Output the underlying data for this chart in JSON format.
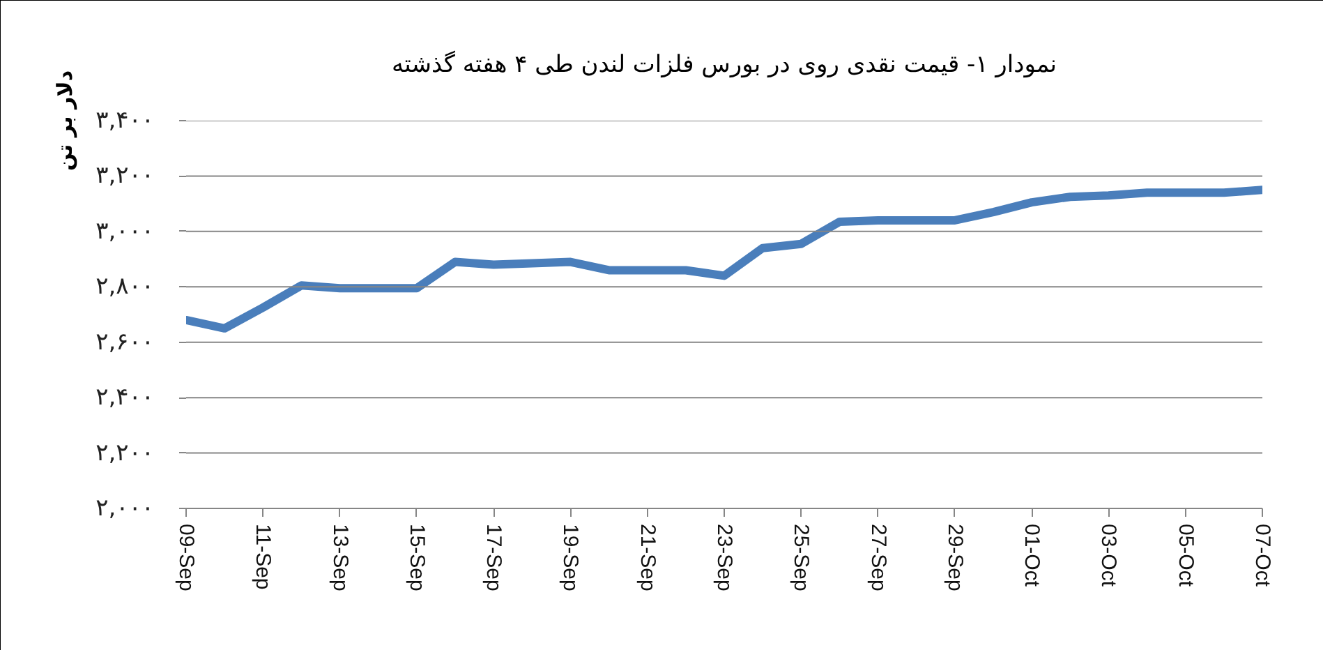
{
  "chart_data": {
    "type": "line",
    "title": "نمودار ۱- قیمت نقدی روی در بورس فلزات لندن طی ۴ هفته گذشته",
    "ylabel": "دلار بر تن",
    "categories": [
      "09-Sep",
      null,
      "11-Sep",
      null,
      "13-Sep",
      null,
      "15-Sep",
      null,
      "17-Sep",
      null,
      "19-Sep",
      null,
      "21-Sep",
      null,
      "23-Sep",
      null,
      "25-Sep",
      null,
      "27-Sep",
      null,
      "29-Sep",
      null,
      "01-Oct",
      null,
      "03-Oct",
      null,
      "05-Oct",
      null,
      "07-Oct"
    ],
    "values": [
      2680,
      2650,
      2725,
      2805,
      2795,
      2795,
      2795,
      2890,
      2880,
      2885,
      2890,
      2860,
      2860,
      2860,
      2840,
      2940,
      2955,
      3035,
      3040,
      3040,
      3040,
      3070,
      3105,
      3125,
      3130,
      3140,
      3140,
      3140,
      3150
    ],
    "color": "#4a7ebb",
    "line_style": "solid",
    "ylim": [
      2000,
      3400
    ],
    "yticks": [
      {
        "value": 2000,
        "label": "۲,۰۰۰"
      },
      {
        "value": 2200,
        "label": "۲,۲۰۰"
      },
      {
        "value": 2400,
        "label": "۲,۴۰۰"
      },
      {
        "value": 2600,
        "label": "۲,۶۰۰"
      },
      {
        "value": 2800,
        "label": "۲,۸۰۰"
      },
      {
        "value": 3000,
        "label": "۳,۰۰۰"
      },
      {
        "value": 3200,
        "label": "۳,۲۰۰"
      },
      {
        "value": 3400,
        "label": "۳,۴۰۰"
      }
    ],
    "grid": "y"
  }
}
